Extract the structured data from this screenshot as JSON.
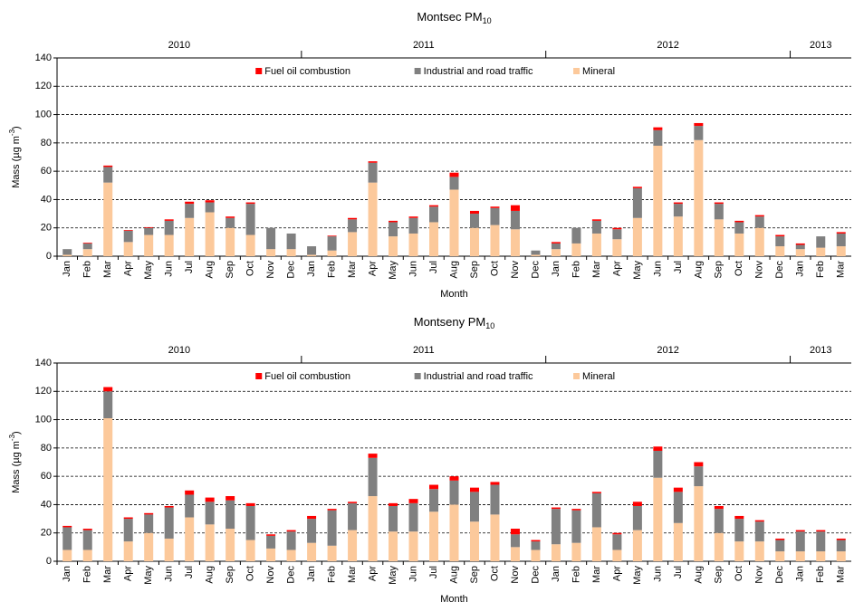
{
  "chart_data": [
    {
      "type": "stacked_bar",
      "title": "Montsec PM",
      "title_sub": "10",
      "ylabel": "Mass (µg m",
      "ylabel_sup": "-3",
      "ylabel_end": ")",
      "xlabel": "Month",
      "years": [
        "2010",
        "2011",
        "2012",
        "2013"
      ],
      "categories": [
        "Jan",
        "Feb",
        "Mar",
        "Apr",
        "May",
        "Jun",
        "Jul",
        "Aug",
        "Sep",
        "Oct",
        "Nov",
        "Dec",
        "Jan",
        "Feb",
        "Mar",
        "Apr",
        "May",
        "Jun",
        "Jul",
        "Aug",
        "Sep",
        "Oct",
        "Nov",
        "Dec",
        "Jan",
        "Feb",
        "Mar",
        "Apr",
        "May",
        "Jun",
        "Jul",
        "Aug",
        "Sep",
        "Oct",
        "Nov",
        "Dec",
        "Jan",
        "Feb",
        "Mar"
      ],
      "ylim": [
        0,
        140
      ],
      "yticks": [
        0,
        20,
        40,
        60,
        80,
        100,
        120,
        140
      ],
      "grid": true,
      "legend": "top",
      "series": [
        {
          "name": "Fuel oil combustion",
          "color": "#ff0000",
          "values": [
            0,
            0.5,
            1,
            0.5,
            0.5,
            1,
            1.5,
            1.5,
            1,
            1,
            0,
            0,
            0,
            0.5,
            1,
            1,
            1,
            1,
            1,
            3,
            2,
            1,
            4,
            0,
            1,
            0,
            1,
            1,
            1,
            2,
            1,
            2,
            1,
            1,
            1,
            1,
            1,
            0,
            1
          ]
        },
        {
          "name": "Industrial and road traffic",
          "color": "#808080",
          "values": [
            4,
            4,
            11,
            8,
            5,
            10,
            10,
            7,
            7,
            22,
            15,
            11,
            6,
            10,
            9,
            14,
            10,
            11,
            11,
            9,
            10,
            12,
            13,
            3,
            4,
            11,
            9,
            7,
            21,
            11,
            9,
            10,
            11,
            8,
            8,
            7,
            3,
            8,
            9
          ]
        },
        {
          "name": "Mineral",
          "color": "#fcc99b",
          "values": [
            1,
            5,
            52,
            10,
            15,
            15,
            27,
            31,
            20,
            15,
            5,
            5,
            1,
            4,
            17,
            52,
            14,
            16,
            24,
            47,
            20,
            22,
            19,
            1,
            5,
            9,
            16,
            12,
            27,
            78,
            28,
            82,
            26,
            16,
            20,
            7,
            5,
            6,
            7
          ]
        }
      ]
    },
    {
      "type": "stacked_bar",
      "title": "Montseny PM",
      "title_sub": "10",
      "ylabel": "Mass (µg m",
      "ylabel_sup": "-3",
      "ylabel_end": ")",
      "xlabel": "Month",
      "years": [
        "2010",
        "2011",
        "2012",
        "2013"
      ],
      "categories": [
        "Jan",
        "Feb",
        "Mar",
        "Apr",
        "May",
        "Jun",
        "Jul",
        "Aug",
        "Sep",
        "Oct",
        "Nov",
        "Dec",
        "Jan",
        "Feb",
        "Mar",
        "Apr",
        "May",
        "Jun",
        "Jul",
        "Aug",
        "Sep",
        "Oct",
        "Nov",
        "Dec",
        "Jan",
        "Feb",
        "Mar",
        "Apr",
        "May",
        "Jun",
        "Jul",
        "Aug",
        "Sep",
        "Oct",
        "Nov",
        "Dec",
        "Jan",
        "Feb",
        "Mar"
      ],
      "ylim": [
        0,
        140
      ],
      "yticks": [
        0,
        20,
        40,
        60,
        80,
        100,
        120,
        140
      ],
      "grid": true,
      "legend": "top",
      "series": [
        {
          "name": "Fuel oil combustion",
          "color": "#ff0000",
          "values": [
            1,
            1,
            3,
            1,
            1,
            1,
            3,
            3,
            3,
            2,
            1,
            1,
            2,
            1,
            1,
            3,
            2,
            3,
            3,
            3,
            3,
            2,
            4,
            1,
            1,
            1,
            1,
            1,
            3,
            3,
            3,
            3,
            2,
            2,
            1,
            1,
            1,
            1,
            1
          ]
        },
        {
          "name": "Industrial and road traffic",
          "color": "#808080",
          "values": [
            16,
            14,
            19,
            16,
            13,
            22,
            16,
            16,
            20,
            24,
            9,
            13,
            17,
            25,
            19,
            27,
            18,
            20,
            16,
            17,
            21,
            21,
            9,
            6,
            25,
            23,
            24,
            11,
            17,
            19,
            22,
            14,
            17,
            16,
            14,
            8,
            14,
            14,
            8
          ]
        },
        {
          "name": "Mineral",
          "color": "#fcc99b",
          "values": [
            8,
            8,
            101,
            14,
            20,
            16,
            31,
            26,
            23,
            15,
            9,
            8,
            13,
            11,
            22,
            46,
            21,
            21,
            35,
            40,
            28,
            33,
            10,
            8,
            12,
            13,
            24,
            8,
            22,
            59,
            27,
            53,
            20,
            14,
            14,
            7,
            7,
            7,
            7
          ]
        }
      ]
    }
  ]
}
